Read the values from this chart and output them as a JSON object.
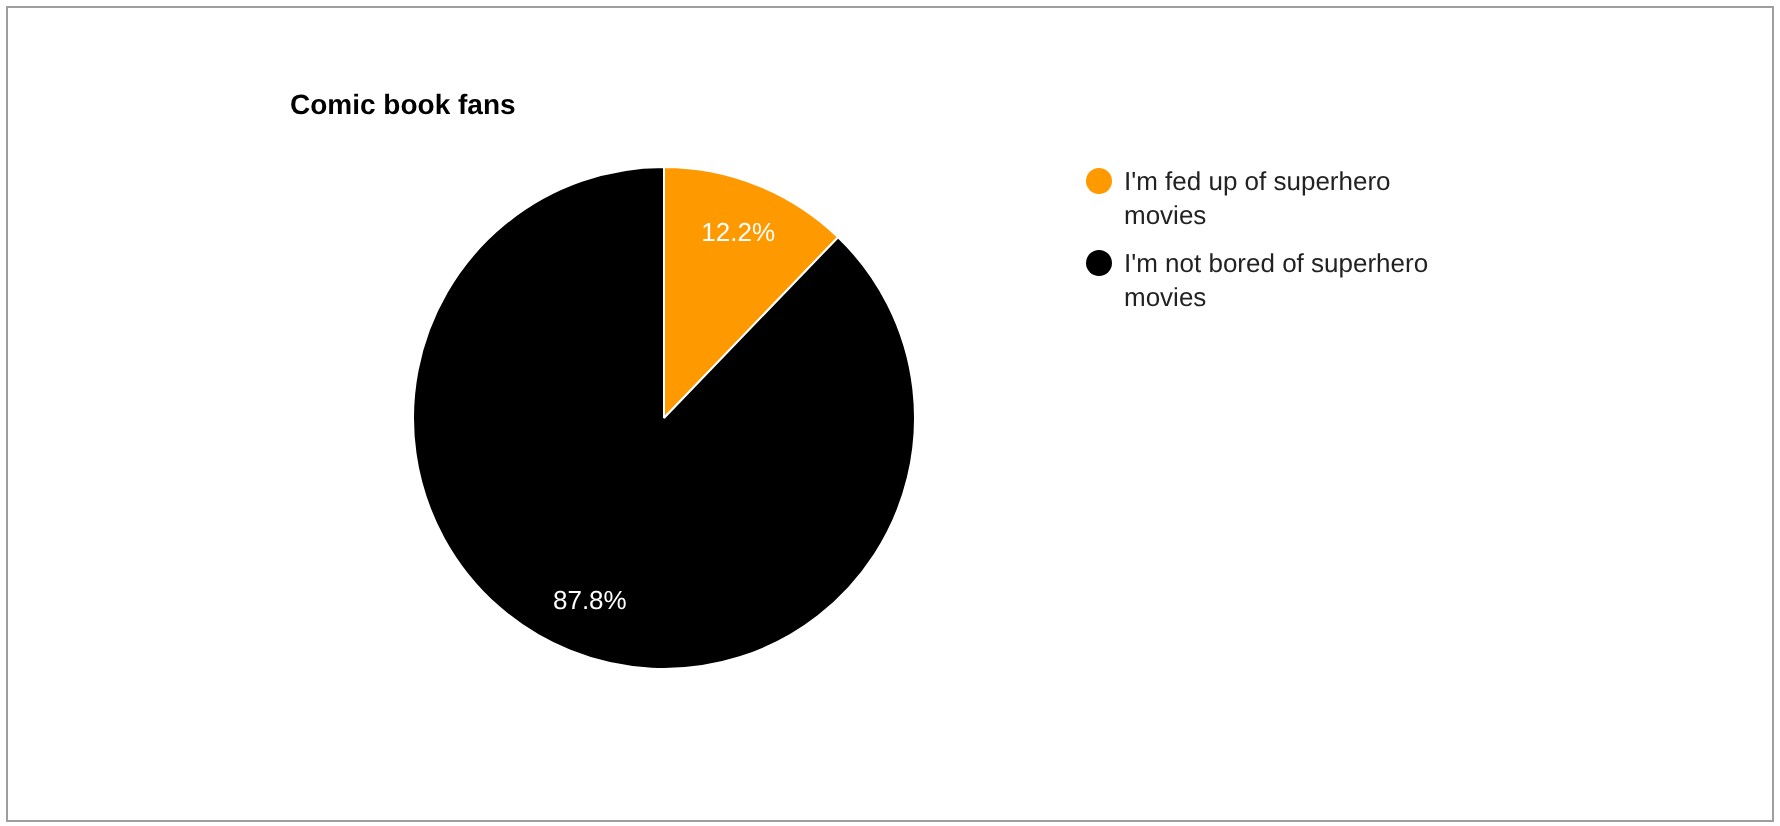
{
  "chart_data": {
    "type": "pie",
    "title": "Comic book fans",
    "categories": [
      "I'm fed up of superhero movies",
      "I'm not bored of superhero movies"
    ],
    "values": [
      12.2,
      87.8
    ],
    "colors": [
      "#ff9900",
      "#000000"
    ],
    "value_labels": [
      "12.2%",
      "87.8%"
    ],
    "legend": "right"
  }
}
